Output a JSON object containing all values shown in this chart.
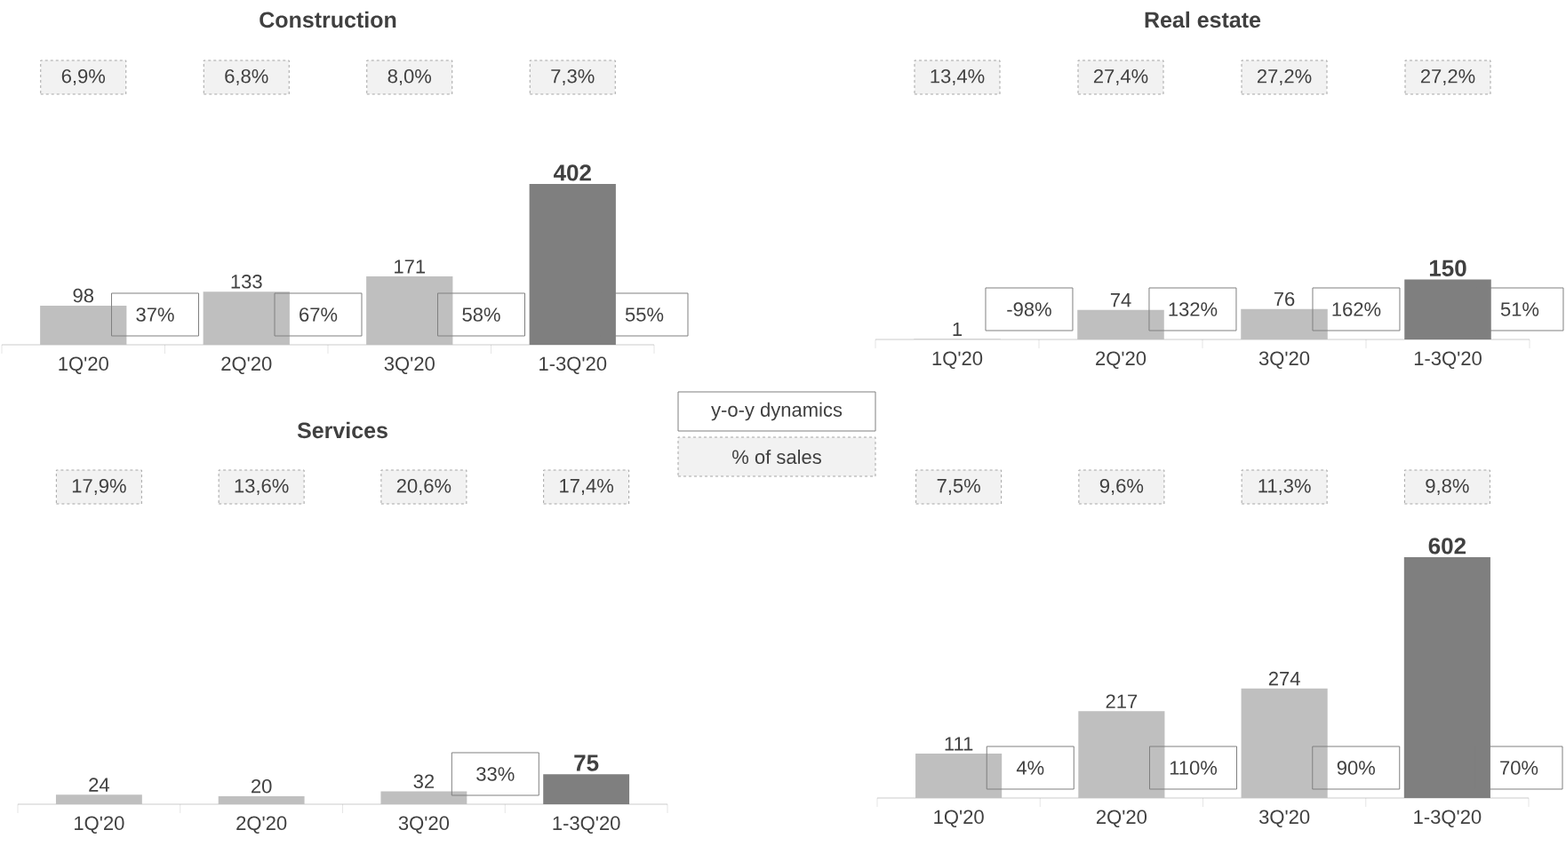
{
  "chart_data": [
    {
      "type": "bar",
      "title": "Construction",
      "categories": [
        "1Q'20",
        "2Q'20",
        "3Q'20",
        "1-3Q'20"
      ],
      "values": [
        98,
        133,
        171,
        402
      ],
      "colors": [
        "#bfbfbf",
        "#bfbfbf",
        "#bfbfbf",
        "#7f7f7f"
      ],
      "data_labels": true,
      "annotations": [
        "6,9%",
        "6,8%",
        "8,0%",
        "7,3%",
        "37%",
        "67%",
        "58%",
        "55%"
      ]
    },
    {
      "type": "bar",
      "title": "Real estate",
      "categories": [
        "1Q'20",
        "2Q'20",
        "3Q'20",
        "1-3Q'20"
      ],
      "values": [
        1,
        74,
        76,
        150
      ],
      "colors": [
        "#bfbfbf",
        "#bfbfbf",
        "#bfbfbf",
        "#7f7f7f"
      ],
      "data_labels": true,
      "annotations": [
        "13,4%",
        "27,4%",
        "27,2%",
        "27,2%",
        "-98%",
        "132%",
        "162%",
        "51%"
      ]
    },
    {
      "type": "bar",
      "title": "Services",
      "categories": [
        "1Q'20",
        "2Q'20",
        "3Q'20",
        "1-3Q'20"
      ],
      "values": [
        24,
        20,
        32,
        75
      ],
      "colors": [
        "#bfbfbf",
        "#bfbfbf",
        "#bfbfbf",
        "#7f7f7f"
      ],
      "data_labels": true,
      "annotations": [
        "17,9%",
        "13,6%",
        "20,6%",
        "17,4%",
        null,
        null,
        "33%",
        null
      ]
    },
    {
      "type": "bar",
      "categories": [
        "1Q'20",
        "2Q'20",
        "3Q'20",
        "1-3Q'20"
      ],
      "values": [
        111,
        217,
        274,
        602
      ],
      "colors": [
        "#bfbfbf",
        "#bfbfbf",
        "#bfbfbf",
        "#7f7f7f"
      ],
      "data_labels": true,
      "annotations": [
        "7,5%",
        "9,6%",
        "11,3%",
        "9,8%",
        "4%",
        "110%",
        "90%",
        "70%"
      ]
    },
    {
      "type": "other",
      "annotations": [
        "y-o-y dynamics",
        "% of sales"
      ]
    }
  ]
}
